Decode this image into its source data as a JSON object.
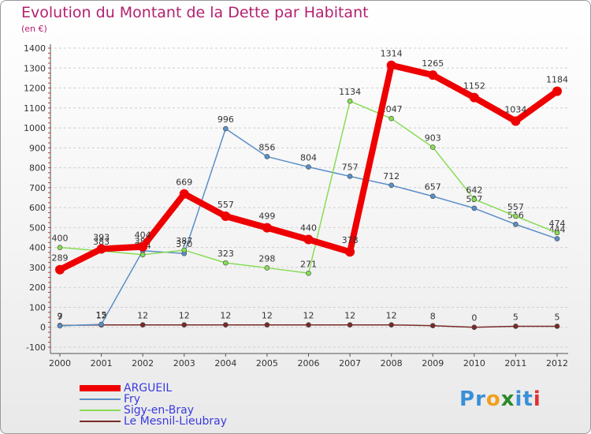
{
  "chart_data": {
    "type": "line",
    "title": "Evolution du Montant de la Dette par Habitant",
    "subtitle": "(en €)",
    "xlabel": "",
    "ylabel": "",
    "categories": [
      "2000",
      "2001",
      "2002",
      "2003",
      "2004",
      "2005",
      "2006",
      "2007",
      "2008",
      "2009",
      "2010",
      "2011",
      "2012"
    ],
    "ylim": [
      -100,
      1400
    ],
    "yticks": [
      -100,
      0,
      100,
      200,
      300,
      400,
      500,
      600,
      700,
      800,
      900,
      1000,
      1100,
      1200,
      1300,
      1400
    ],
    "grid": true,
    "legend_position": "bottom-left",
    "series": [
      {
        "name": "ARGUEIL",
        "color": "#ee0000",
        "values": [
          289,
          393,
          404,
          669,
          557,
          499,
          440,
          378,
          1314,
          1265,
          1152,
          1034,
          1184
        ]
      },
      {
        "name": "Fry",
        "color": "#5b8fc7",
        "values": [
          7,
          15,
          384,
          370,
          996,
          856,
          804,
          757,
          712,
          657,
          597,
          516,
          444
        ]
      },
      {
        "name": "Sigy-en-Bray",
        "color": "#88dd55",
        "values": [
          400,
          383,
          364,
          387,
          323,
          298,
          271,
          1134,
          1047,
          903,
          642,
          557,
          474
        ]
      },
      {
        "name": "Le Mesnil-Lieubray",
        "color": "#7a2a2a",
        "values": [
          9,
          12,
          12,
          12,
          12,
          12,
          12,
          12,
          12,
          8,
          0,
          5,
          5
        ]
      }
    ]
  },
  "logo": {
    "letters": [
      "P",
      "r",
      "o",
      "x",
      "i",
      "t",
      "i"
    ],
    "colors": [
      "#3a8fd8",
      "#3a8fd8",
      "#f0a020",
      "#2a8a2a",
      "#3a8fd8",
      "#3a8fd8",
      "#e03030"
    ]
  }
}
